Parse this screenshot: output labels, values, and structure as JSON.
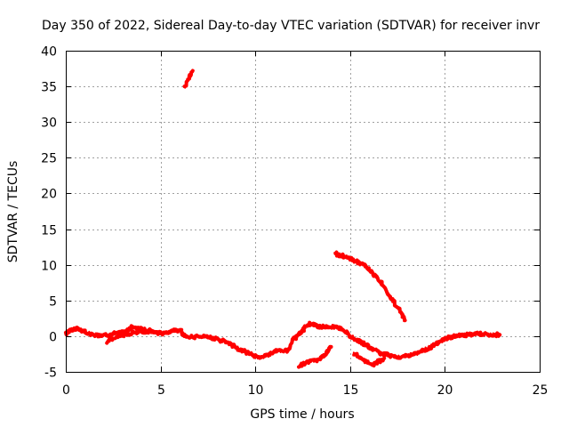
{
  "chart_data": {
    "type": "line",
    "title": "Day 350 of 2022, Sidereal Day-to-day VTEC variation (SDTVAR) for receiver invr",
    "xlabel": "GPS time / hours",
    "ylabel": "SDTVAR / TECUs",
    "xlim": [
      0,
      25
    ],
    "ylim": [
      -5,
      40
    ],
    "xticks": [
      0,
      5,
      10,
      15,
      20,
      25
    ],
    "yticks": [
      -5,
      0,
      5,
      10,
      15,
      20,
      25,
      30,
      35,
      40
    ],
    "grid": true,
    "color": "#ff0000",
    "series": [
      {
        "name": "segment-1",
        "x": [
          0.0,
          0.3,
          0.6,
          1.0,
          1.5,
          2.0,
          2.5,
          3.0,
          3.5,
          4.0,
          4.5,
          5.0,
          5.5,
          6.0,
          6.3,
          6.8,
          7.3,
          7.8,
          8.3,
          8.8,
          9.3,
          9.8,
          10.2,
          10.7,
          11.2,
          11.7,
          12.0,
          12.3,
          12.6,
          12.9,
          13.3,
          13.8,
          14.3,
          14.7,
          15.0,
          15.4,
          15.8,
          16.2,
          16.7,
          17.2,
          17.7,
          18.2,
          18.7,
          19.2,
          19.7,
          20.2,
          20.7,
          21.2,
          21.7,
          22.2,
          22.6,
          22.9
        ],
        "y": [
          0.4,
          0.9,
          1.0,
          0.6,
          0.2,
          0.1,
          0.3,
          0.5,
          1.2,
          1.1,
          0.7,
          0.4,
          0.6,
          0.9,
          0.0,
          -0.1,
          0.0,
          -0.3,
          -0.7,
          -1.3,
          -2.0,
          -2.6,
          -3.0,
          -2.6,
          -2.0,
          -2.1,
          -0.5,
          0.3,
          1.2,
          1.8,
          1.4,
          1.3,
          1.2,
          0.8,
          0.0,
          -0.6,
          -1.2,
          -1.8,
          -2.5,
          -2.8,
          -2.9,
          -2.7,
          -2.2,
          -1.6,
          -0.8,
          -0.2,
          0.1,
          0.2,
          0.3,
          0.3,
          0.2,
          0.2
        ]
      },
      {
        "name": "segment-2",
        "x": [
          2.2,
          2.7,
          3.2,
          3.7,
          4.2,
          4.7
        ],
        "y": [
          -0.8,
          -0.1,
          0.3,
          0.5,
          0.6,
          0.5
        ]
      },
      {
        "name": "segment-3",
        "x": [
          12.3,
          12.8,
          13.3,
          13.7,
          14.0
        ],
        "y": [
          -4.2,
          -3.6,
          -3.3,
          -2.5,
          -1.5
        ]
      },
      {
        "name": "segment-4",
        "x": [
          15.2,
          15.7,
          16.2,
          16.5,
          16.8
        ],
        "y": [
          -2.5,
          -3.3,
          -4.0,
          -3.6,
          -3.1
        ]
      },
      {
        "name": "segment-5",
        "x": [
          14.2,
          14.7,
          15.2,
          15.7,
          16.2,
          16.7,
          17.2,
          17.7,
          17.9
        ],
        "y": [
          11.6,
          11.2,
          10.6,
          10.0,
          8.8,
          7.2,
          5.2,
          3.2,
          2.2
        ]
      },
      {
        "name": "segment-6",
        "x": [
          6.3,
          6.5,
          6.7
        ],
        "y": [
          35.0,
          36.2,
          37.2
        ]
      }
    ]
  }
}
